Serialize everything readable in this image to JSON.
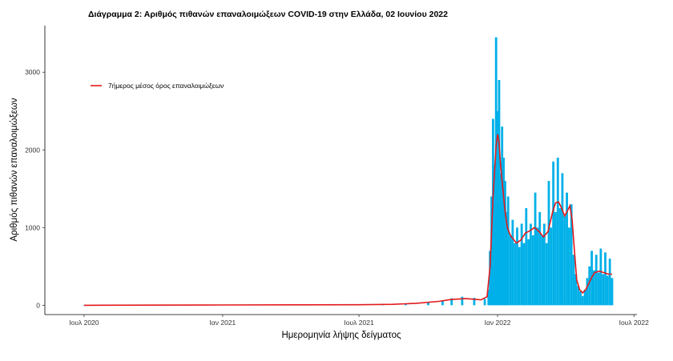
{
  "chart_data": {
    "type": "bar",
    "title": "Διάγραμμα 2: Αριθμός πιθανών επαναλοιμώξεων COVID-19 στην Ελλάδα, 02 Ιουνίου 2022",
    "xlabel": "Ημερομηνία λήψης δείγματος",
    "ylabel": "Αριθμός πιθανών επαναλοιμώξεων",
    "x_ticks": [
      {
        "date": "2020-07-01",
        "label": "Ιουλ 2020"
      },
      {
        "date": "2021-01-01",
        "label": "Ιαν 2021"
      },
      {
        "date": "2021-07-01",
        "label": "Ιουλ 2021"
      },
      {
        "date": "2022-01-01",
        "label": "Ιαν 2022"
      },
      {
        "date": "2022-07-01",
        "label": "Ιουλ 2022"
      }
    ],
    "xlim": [
      "2020-05-10",
      "2022-07-05"
    ],
    "y_ticks": [
      0,
      1000,
      2000,
      3000
    ],
    "ylim": [
      -120,
      3600
    ],
    "grid": false,
    "legend_position": "top-left",
    "series": [
      {
        "name": "",
        "kind": "bar",
        "color": "#00b0e8",
        "points": [
          [
            "2020-07-01",
            0
          ],
          [
            "2020-09-01",
            1
          ],
          [
            "2020-11-01",
            3
          ],
          [
            "2021-01-01",
            4
          ],
          [
            "2021-03-01",
            6
          ],
          [
            "2021-05-01",
            8
          ],
          [
            "2021-07-01",
            8
          ],
          [
            "2021-08-01",
            12
          ],
          [
            "2021-09-01",
            20
          ],
          [
            "2021-10-01",
            35
          ],
          [
            "2021-10-20",
            60
          ],
          [
            "2021-11-01",
            90
          ],
          [
            "2021-11-15",
            110
          ],
          [
            "2021-12-01",
            95
          ],
          [
            "2021-12-15",
            80
          ],
          [
            "2021-12-20",
            200
          ],
          [
            "2021-12-22",
            700
          ],
          [
            "2021-12-24",
            1400
          ],
          [
            "2021-12-26",
            2400
          ],
          [
            "2021-12-28",
            1800
          ],
          [
            "2021-12-30",
            3450
          ],
          [
            "2022-01-01",
            2500
          ],
          [
            "2022-01-03",
            2900
          ],
          [
            "2022-01-05",
            1700
          ],
          [
            "2022-01-07",
            2300
          ],
          [
            "2022-01-09",
            1900
          ],
          [
            "2022-01-11",
            1600
          ],
          [
            "2022-01-13",
            1200
          ],
          [
            "2022-01-15",
            1400
          ],
          [
            "2022-01-18",
            900
          ],
          [
            "2022-01-21",
            1100
          ],
          [
            "2022-01-24",
            800
          ],
          [
            "2022-01-27",
            1000
          ],
          [
            "2022-01-30",
            750
          ],
          [
            "2022-02-02",
            1050
          ],
          [
            "2022-02-05",
            800
          ],
          [
            "2022-02-08",
            1250
          ],
          [
            "2022-02-11",
            850
          ],
          [
            "2022-02-14",
            1050
          ],
          [
            "2022-02-17",
            900
          ],
          [
            "2022-02-20",
            1450
          ],
          [
            "2022-02-23",
            1000
          ],
          [
            "2022-02-26",
            1200
          ],
          [
            "2022-03-01",
            900
          ],
          [
            "2022-03-04",
            1050
          ],
          [
            "2022-03-07",
            800
          ],
          [
            "2022-03-10",
            1600
          ],
          [
            "2022-03-13",
            1000
          ],
          [
            "2022-03-16",
            1850
          ],
          [
            "2022-03-19",
            1200
          ],
          [
            "2022-03-22",
            1900
          ],
          [
            "2022-03-25",
            1250
          ],
          [
            "2022-03-28",
            1700
          ],
          [
            "2022-03-31",
            1150
          ],
          [
            "2022-04-03",
            1450
          ],
          [
            "2022-04-06",
            1000
          ],
          [
            "2022-04-09",
            1300
          ],
          [
            "2022-04-12",
            650
          ],
          [
            "2022-04-15",
            400
          ],
          [
            "2022-04-18",
            250
          ],
          [
            "2022-04-21",
            180
          ],
          [
            "2022-04-24",
            120
          ],
          [
            "2022-04-27",
            200
          ],
          [
            "2022-04-30",
            350
          ],
          [
            "2022-05-03",
            500
          ],
          [
            "2022-05-06",
            700
          ],
          [
            "2022-05-09",
            450
          ],
          [
            "2022-05-12",
            650
          ],
          [
            "2022-05-15",
            420
          ],
          [
            "2022-05-18",
            730
          ],
          [
            "2022-05-21",
            400
          ],
          [
            "2022-05-24",
            680
          ],
          [
            "2022-05-27",
            380
          ],
          [
            "2022-05-30",
            600
          ],
          [
            "2022-06-02",
            350
          ]
        ]
      },
      {
        "name": "7ήμερος μέσος όρος επαναλοιμώξεων",
        "kind": "line",
        "color": "#e31a1c",
        "points": [
          [
            "2020-07-01",
            0
          ],
          [
            "2020-10-01",
            2
          ],
          [
            "2021-01-01",
            4
          ],
          [
            "2021-04-01",
            6
          ],
          [
            "2021-07-01",
            7
          ],
          [
            "2021-08-15",
            12
          ],
          [
            "2021-09-15",
            25
          ],
          [
            "2021-10-15",
            50
          ],
          [
            "2021-11-01",
            75
          ],
          [
            "2021-11-20",
            85
          ],
          [
            "2021-12-10",
            70
          ],
          [
            "2021-12-18",
            110
          ],
          [
            "2021-12-22",
            500
          ],
          [
            "2021-12-26",
            1400
          ],
          [
            "2021-12-30",
            2050
          ],
          [
            "2022-01-01",
            2200
          ],
          [
            "2022-01-03",
            2100
          ],
          [
            "2022-01-05",
            1800
          ],
          [
            "2022-01-08",
            1500
          ],
          [
            "2022-01-11",
            1200
          ],
          [
            "2022-01-14",
            1000
          ],
          [
            "2022-01-18",
            900
          ],
          [
            "2022-01-22",
            850
          ],
          [
            "2022-01-26",
            800
          ],
          [
            "2022-02-01",
            840
          ],
          [
            "2022-02-07",
            930
          ],
          [
            "2022-02-13",
            960
          ],
          [
            "2022-02-19",
            1000
          ],
          [
            "2022-02-25",
            950
          ],
          [
            "2022-03-03",
            880
          ],
          [
            "2022-03-09",
            950
          ],
          [
            "2022-03-15",
            1200
          ],
          [
            "2022-03-19",
            1320
          ],
          [
            "2022-03-23",
            1330
          ],
          [
            "2022-03-27",
            1250
          ],
          [
            "2022-03-31",
            1150
          ],
          [
            "2022-04-04",
            1220
          ],
          [
            "2022-04-07",
            1280
          ],
          [
            "2022-04-10",
            1100
          ],
          [
            "2022-04-13",
            700
          ],
          [
            "2022-04-16",
            330
          ],
          [
            "2022-04-20",
            200
          ],
          [
            "2022-04-24",
            160
          ],
          [
            "2022-04-28",
            200
          ],
          [
            "2022-05-02",
            280
          ],
          [
            "2022-05-06",
            360
          ],
          [
            "2022-05-10",
            420
          ],
          [
            "2022-05-16",
            440
          ],
          [
            "2022-05-22",
            420
          ],
          [
            "2022-05-28",
            400
          ],
          [
            "2022-06-02",
            400
          ]
        ]
      }
    ]
  }
}
